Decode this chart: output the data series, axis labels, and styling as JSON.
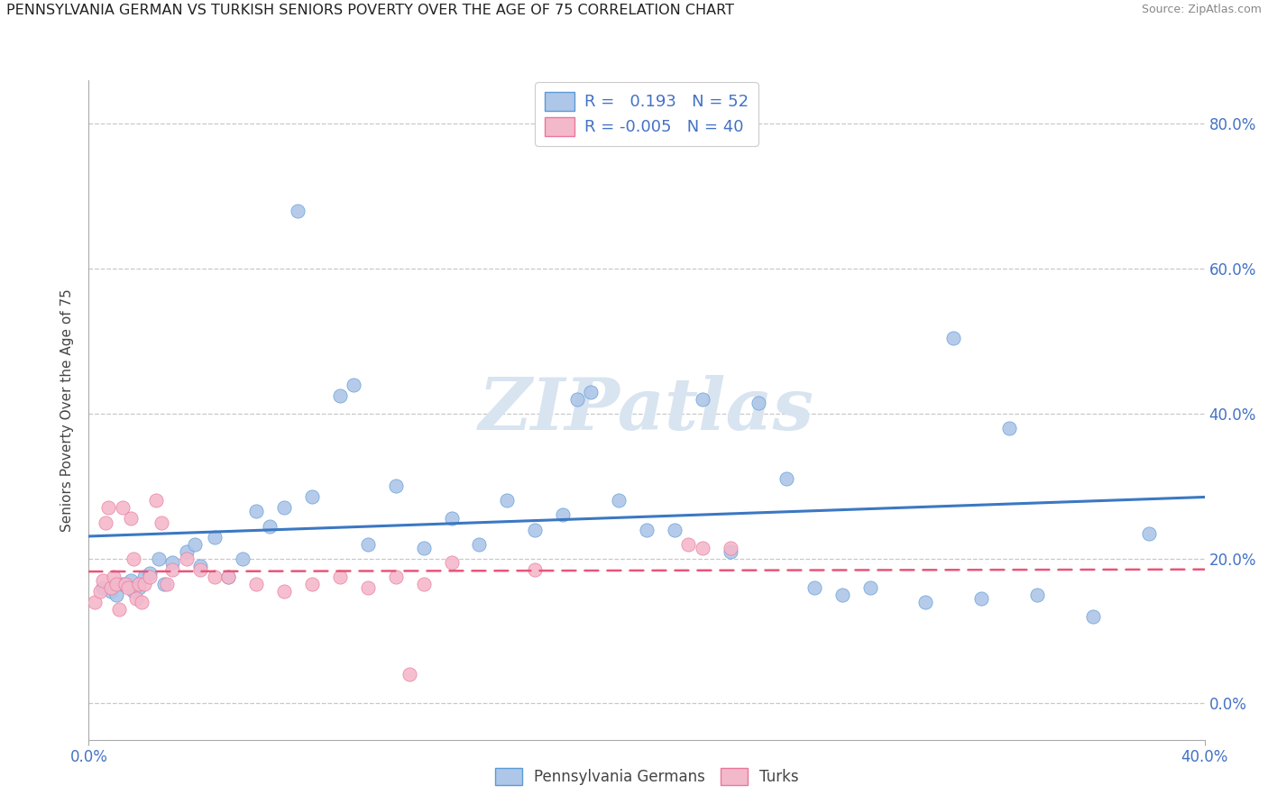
{
  "title": "PENNSYLVANIA GERMAN VS TURKISH SENIORS POVERTY OVER THE AGE OF 75 CORRELATION CHART",
  "source": "Source: ZipAtlas.com",
  "ylabel": "Seniors Poverty Over the Age of 75",
  "ytick_vals": [
    0.0,
    0.2,
    0.4,
    0.6,
    0.8
  ],
  "xmin": 0.0,
  "xmax": 0.4,
  "ymin": -0.05,
  "ymax": 0.86,
  "r_german": 0.193,
  "n_german": 52,
  "r_turks": -0.005,
  "n_turks": 40,
  "color_german": "#aec6e8",
  "color_german_edge": "#5b9bd5",
  "color_turks": "#f4b8cb",
  "color_turks_edge": "#e8789a",
  "line_color_german": "#3b78c3",
  "line_color_turks": "#e8557a",
  "legend_label_german": "Pennsylvania Germans",
  "legend_label_turks": "Turks",
  "german_x": [
    0.005,
    0.008,
    0.01,
    0.012,
    0.015,
    0.016,
    0.018,
    0.02,
    0.022,
    0.025,
    0.027,
    0.03,
    0.035,
    0.038,
    0.04,
    0.045,
    0.05,
    0.055,
    0.06,
    0.065,
    0.07,
    0.075,
    0.08,
    0.09,
    0.095,
    0.1,
    0.11,
    0.12,
    0.13,
    0.14,
    0.15,
    0.16,
    0.17,
    0.175,
    0.18,
    0.19,
    0.2,
    0.21,
    0.22,
    0.23,
    0.24,
    0.25,
    0.26,
    0.27,
    0.28,
    0.3,
    0.31,
    0.32,
    0.33,
    0.34,
    0.36,
    0.38
  ],
  "german_y": [
    0.16,
    0.155,
    0.15,
    0.165,
    0.17,
    0.155,
    0.16,
    0.175,
    0.18,
    0.2,
    0.165,
    0.195,
    0.21,
    0.22,
    0.19,
    0.23,
    0.175,
    0.2,
    0.265,
    0.245,
    0.27,
    0.68,
    0.285,
    0.425,
    0.44,
    0.22,
    0.3,
    0.215,
    0.255,
    0.22,
    0.28,
    0.24,
    0.26,
    0.42,
    0.43,
    0.28,
    0.24,
    0.24,
    0.42,
    0.21,
    0.415,
    0.31,
    0.16,
    0.15,
    0.16,
    0.14,
    0.505,
    0.145,
    0.38,
    0.15,
    0.12,
    0.235
  ],
  "turks_x": [
    0.002,
    0.004,
    0.005,
    0.006,
    0.007,
    0.008,
    0.009,
    0.01,
    0.011,
    0.012,
    0.013,
    0.014,
    0.015,
    0.016,
    0.017,
    0.018,
    0.019,
    0.02,
    0.022,
    0.024,
    0.026,
    0.028,
    0.03,
    0.035,
    0.04,
    0.045,
    0.05,
    0.06,
    0.07,
    0.08,
    0.09,
    0.1,
    0.11,
    0.115,
    0.12,
    0.13,
    0.16,
    0.215,
    0.22,
    0.23
  ],
  "turks_y": [
    0.14,
    0.155,
    0.17,
    0.25,
    0.27,
    0.16,
    0.175,
    0.165,
    0.13,
    0.27,
    0.165,
    0.16,
    0.255,
    0.2,
    0.145,
    0.165,
    0.14,
    0.165,
    0.175,
    0.28,
    0.25,
    0.165,
    0.185,
    0.2,
    0.185,
    0.175,
    0.175,
    0.165,
    0.155,
    0.165,
    0.175,
    0.16,
    0.175,
    0.04,
    0.165,
    0.195,
    0.185,
    0.22,
    0.215,
    0.215
  ]
}
